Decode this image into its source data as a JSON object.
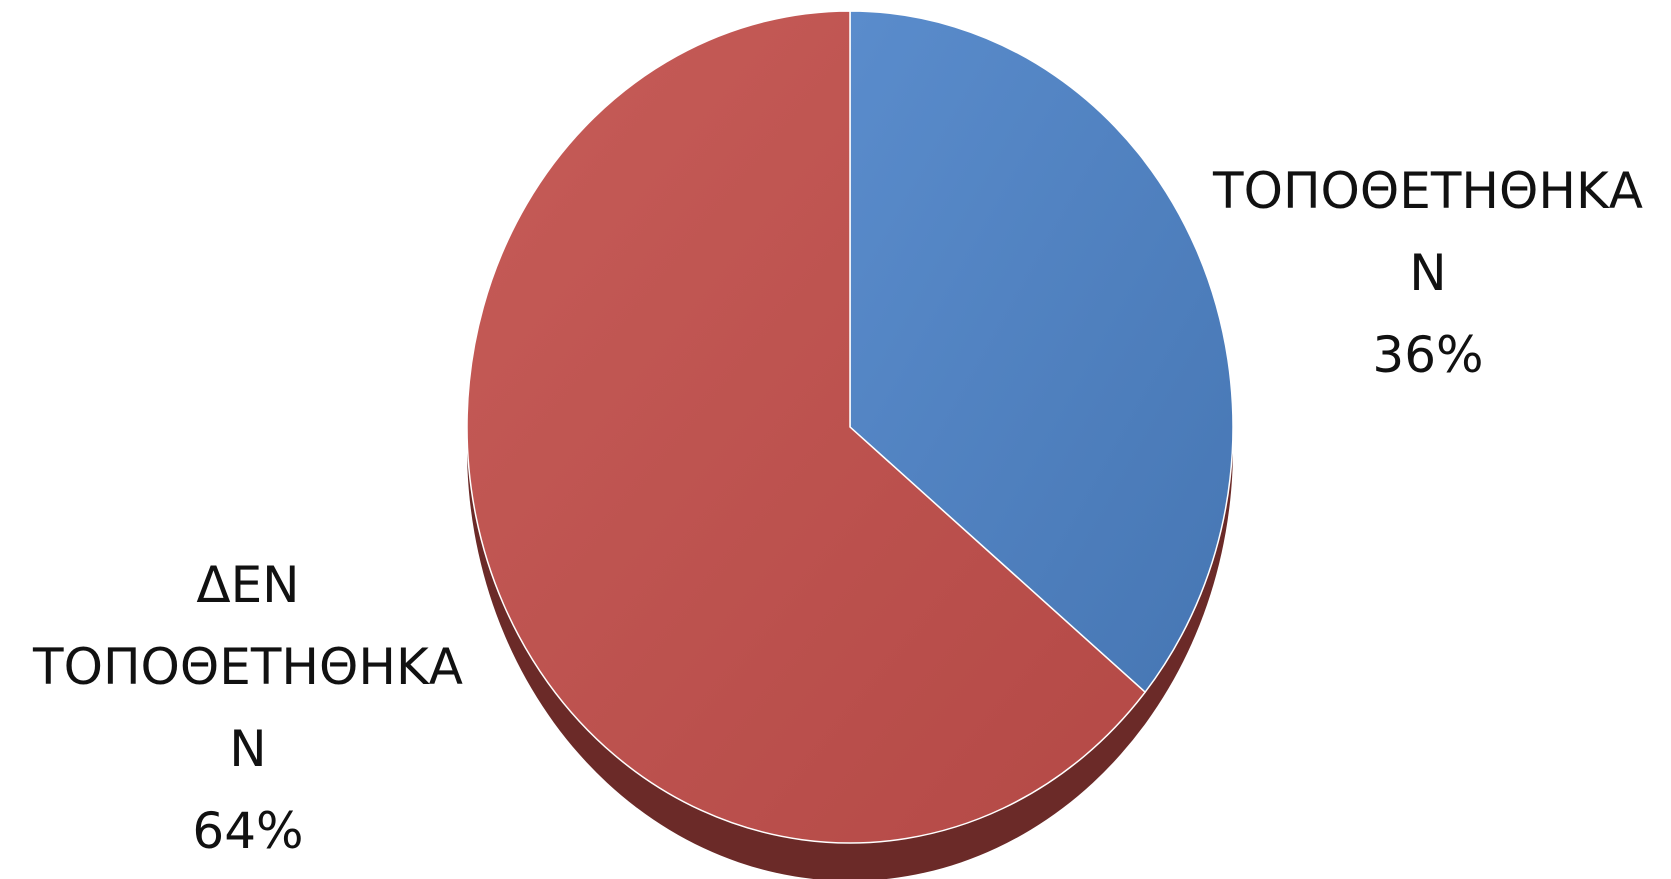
{
  "chart_data": {
    "type": "pie",
    "title": "",
    "legend": "none",
    "slices": [
      {
        "label_lines": [
          "ΤΟΠΟΘΕΤΗΘΗΚΑ",
          "Ν"
        ],
        "value": 36,
        "value_label": "36%",
        "color": "#4f81bd"
      },
      {
        "label_lines": [
          "ΔΕΝ",
          "ΤΟΠΟΘΕΤΗΘΗΚΑ",
          "Ν"
        ],
        "value": 64,
        "value_label": "64%",
        "color": "#c0504d"
      }
    ]
  }
}
